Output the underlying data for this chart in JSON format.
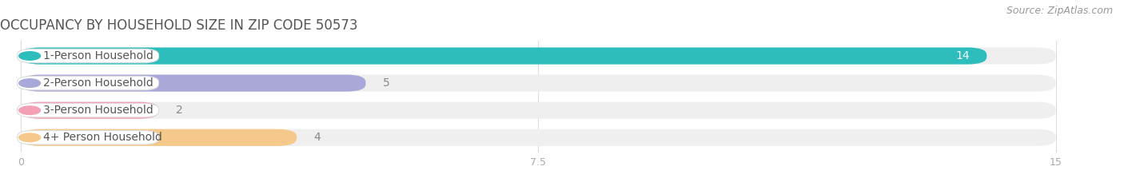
{
  "title": "OCCUPANCY BY HOUSEHOLD SIZE IN ZIP CODE 50573",
  "source": "Source: ZipAtlas.com",
  "categories": [
    "1-Person Household",
    "2-Person Household",
    "3-Person Household",
    "4+ Person Household"
  ],
  "values": [
    14,
    5,
    2,
    4
  ],
  "bar_colors": [
    "#2dbdbd",
    "#a9a8d8",
    "#f4a0b4",
    "#f5c98a"
  ],
  "bar_bg_color": "#efefef",
  "background_color": "#ffffff",
  "xlim": [
    -0.3,
    15.5
  ],
  "xlim_display": [
    0,
    15
  ],
  "xticks": [
    0,
    7.5,
    15
  ],
  "title_fontsize": 12,
  "source_fontsize": 9,
  "label_fontsize": 10,
  "value_fontsize": 10,
  "title_color": "#555555",
  "value_color_inside": "#ffffff",
  "value_color_outside": "#888888",
  "label_text_color": "#555555"
}
